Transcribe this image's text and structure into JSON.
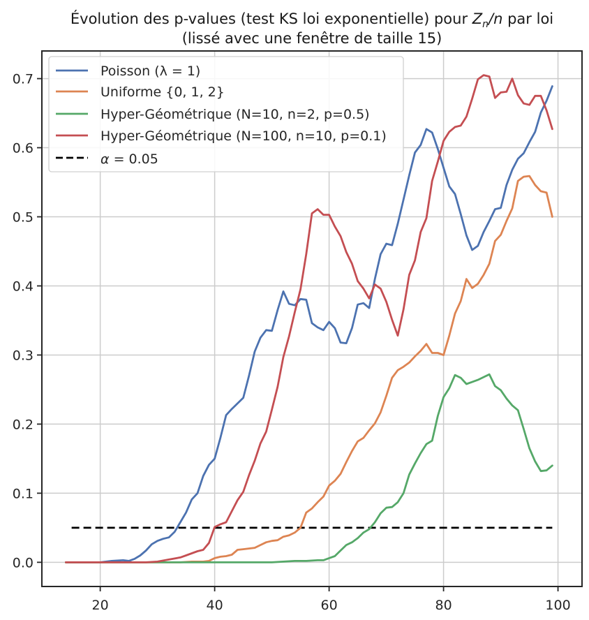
{
  "chart_data": {
    "type": "line",
    "title": "Évolution des p-values (test KS loi exponentielle) pour Z_n/n par loi",
    "title_prefix": "Évolution des p-values (test KS loi exponentielle) pour ",
    "title_math_Z": "Z",
    "title_math_sub": "n",
    "title_math_rest": "/n",
    "title_suffix": " par loi",
    "subtitle": "(lissé avec une fenêtre de taille 15)",
    "xlabel": "",
    "ylabel": "",
    "xlim": [
      9.8,
      104.2
    ],
    "ylim": [
      -0.035,
      0.74
    ],
    "x_ticks": [
      20,
      40,
      60,
      80,
      100
    ],
    "y_ticks": [
      0.0,
      0.1,
      0.2,
      0.3,
      0.4,
      0.5,
      0.6,
      0.7
    ],
    "x_tick_labels": [
      "20",
      "40",
      "60",
      "80",
      "100"
    ],
    "y_tick_labels": [
      "0.0",
      "0.1",
      "0.2",
      "0.3",
      "0.4",
      "0.5",
      "0.6",
      "0.7"
    ],
    "grid": true,
    "legend_position": "top-left",
    "threshold": {
      "label": "α = 0.05",
      "label_math_alpha": "α",
      "label_math_rest": " = 0.05",
      "value": 0.05,
      "x_range": [
        15,
        99
      ],
      "color": "#000000",
      "style": "dashed"
    },
    "series": [
      {
        "name": "Poisson (λ = 1)",
        "color": "#4c72b0",
        "x": [
          14,
          20,
          22,
          24,
          25,
          26,
          27,
          28,
          29,
          30,
          31,
          32,
          33,
          34,
          35,
          36,
          37,
          38,
          39,
          40,
          41,
          42,
          43,
          44,
          45,
          46,
          47,
          48,
          49,
          50,
          51,
          52,
          53,
          54,
          55,
          56,
          57,
          58,
          59,
          60,
          61,
          62,
          63,
          64,
          65,
          66,
          67,
          68,
          69,
          70,
          71,
          72,
          73,
          74,
          75,
          76,
          77,
          78,
          79,
          80,
          81,
          82,
          83,
          84,
          85,
          86,
          87,
          88,
          89,
          90,
          91,
          92,
          93,
          94,
          95,
          96,
          97,
          98,
          99
        ],
        "y": [
          0.0,
          0.0,
          0.002,
          0.003,
          0.002,
          0.005,
          0.01,
          0.017,
          0.026,
          0.031,
          0.034,
          0.036,
          0.044,
          0.058,
          0.072,
          0.091,
          0.1,
          0.125,
          0.141,
          0.15,
          0.18,
          0.213,
          0.222,
          0.23,
          0.238,
          0.27,
          0.305,
          0.325,
          0.336,
          0.335,
          0.365,
          0.392,
          0.374,
          0.372,
          0.381,
          0.38,
          0.346,
          0.34,
          0.336,
          0.348,
          0.339,
          0.318,
          0.317,
          0.339,
          0.373,
          0.375,
          0.368,
          0.41,
          0.446,
          0.461,
          0.459,
          0.49,
          0.525,
          0.56,
          0.593,
          0.604,
          0.627,
          0.622,
          0.598,
          0.571,
          0.544,
          0.533,
          0.504,
          0.473,
          0.452,
          0.458,
          0.478,
          0.494,
          0.511,
          0.513,
          0.546,
          0.568,
          0.584,
          0.592,
          0.608,
          0.623,
          0.651,
          0.668,
          0.689
        ]
      },
      {
        "name": "Uniforme {0, 1, 2}",
        "color": "#dd8452",
        "x": [
          14,
          30,
          34,
          36,
          38,
          39,
          40,
          41,
          42,
          43,
          44,
          45,
          46,
          47,
          48,
          49,
          50,
          51,
          52,
          53,
          54,
          55,
          56,
          57,
          58,
          59,
          60,
          61,
          62,
          63,
          64,
          65,
          66,
          67,
          68,
          69,
          70,
          71,
          72,
          73,
          74,
          75,
          76,
          77,
          78,
          79,
          80,
          81,
          82,
          83,
          84,
          85,
          86,
          87,
          88,
          89,
          90,
          91,
          92,
          93,
          94,
          95,
          96,
          97,
          98,
          99
        ],
        "y": [
          0.0,
          0.0,
          0.0,
          0.001,
          0.001,
          0.002,
          0.006,
          0.008,
          0.009,
          0.011,
          0.018,
          0.019,
          0.02,
          0.021,
          0.025,
          0.029,
          0.031,
          0.032,
          0.037,
          0.039,
          0.043,
          0.05,
          0.072,
          0.078,
          0.087,
          0.095,
          0.111,
          0.118,
          0.128,
          0.145,
          0.161,
          0.175,
          0.18,
          0.191,
          0.201,
          0.217,
          0.241,
          0.267,
          0.278,
          0.283,
          0.289,
          0.298,
          0.306,
          0.316,
          0.303,
          0.303,
          0.3,
          0.328,
          0.36,
          0.378,
          0.41,
          0.397,
          0.403,
          0.416,
          0.432,
          0.465,
          0.474,
          0.494,
          0.512,
          0.552,
          0.558,
          0.559,
          0.546,
          0.537,
          0.535,
          0.5
        ]
      },
      {
        "name": "Hyper-Géométrique (N=10, n=2, p=0.5)",
        "color": "#55a868",
        "x": [
          14,
          50,
          52,
          54,
          56,
          58,
          59,
          60,
          61,
          62,
          63,
          64,
          65,
          66,
          67,
          68,
          69,
          70,
          71,
          72,
          73,
          74,
          75,
          76,
          77,
          78,
          79,
          80,
          81,
          82,
          83,
          84,
          85,
          86,
          87,
          88,
          89,
          90,
          91,
          92,
          93,
          94,
          95,
          96,
          97,
          98,
          99
        ],
        "y": [
          0.0,
          0.0,
          0.001,
          0.002,
          0.002,
          0.003,
          0.003,
          0.006,
          0.009,
          0.017,
          0.025,
          0.029,
          0.035,
          0.043,
          0.048,
          0.058,
          0.071,
          0.079,
          0.08,
          0.087,
          0.1,
          0.127,
          0.143,
          0.158,
          0.171,
          0.176,
          0.212,
          0.239,
          0.252,
          0.271,
          0.267,
          0.258,
          0.261,
          0.264,
          0.268,
          0.272,
          0.255,
          0.249,
          0.237,
          0.227,
          0.22,
          0.193,
          0.165,
          0.146,
          0.132,
          0.133,
          0.14
        ]
      },
      {
        "name": "Hyper-Géométrique (N=100, n=10, p=0.1)",
        "color": "#c44e52",
        "x": [
          14,
          28,
          30,
          32,
          34,
          35,
          36,
          37,
          38,
          39,
          40,
          41,
          42,
          43,
          44,
          45,
          46,
          47,
          48,
          49,
          50,
          51,
          52,
          53,
          54,
          55,
          56,
          57,
          58,
          59,
          60,
          61,
          62,
          63,
          64,
          65,
          66,
          67,
          68,
          69,
          70,
          71,
          72,
          73,
          74,
          75,
          76,
          77,
          78,
          79,
          80,
          81,
          82,
          83,
          84,
          85,
          86,
          87,
          88,
          89,
          90,
          91,
          92,
          93,
          94,
          95,
          96,
          97,
          98,
          99
        ],
        "y": [
          0.0,
          0.0,
          0.001,
          0.004,
          0.007,
          0.01,
          0.013,
          0.016,
          0.018,
          0.028,
          0.051,
          0.055,
          0.058,
          0.074,
          0.09,
          0.102,
          0.126,
          0.147,
          0.172,
          0.189,
          0.221,
          0.254,
          0.297,
          0.327,
          0.362,
          0.395,
          0.446,
          0.505,
          0.511,
          0.503,
          0.503,
          0.486,
          0.472,
          0.449,
          0.432,
          0.407,
          0.396,
          0.382,
          0.402,
          0.396,
          0.377,
          0.351,
          0.328,
          0.366,
          0.416,
          0.437,
          0.478,
          0.498,
          0.552,
          0.58,
          0.61,
          0.623,
          0.63,
          0.632,
          0.645,
          0.671,
          0.699,
          0.705,
          0.703,
          0.672,
          0.68,
          0.681,
          0.7,
          0.676,
          0.664,
          0.662,
          0.675,
          0.675,
          0.654,
          0.627
        ]
      }
    ]
  }
}
